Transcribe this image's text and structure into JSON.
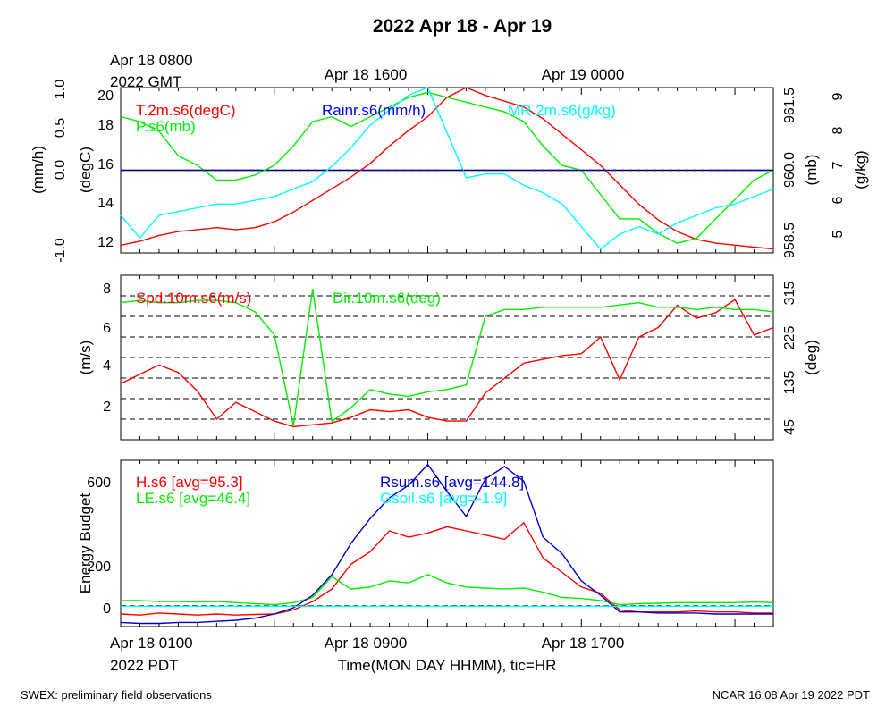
{
  "header": {
    "title": "2022 Apr 18 - Apr 19"
  },
  "gmt_axis": {
    "ticks": [
      {
        "label": "Apr 18 0800",
        "sub": "2022 GMT"
      },
      {
        "label": "Apr 18 1600",
        "sub": ""
      },
      {
        "label": "Apr 19 0000",
        "sub": ""
      }
    ]
  },
  "footer": {
    "left": "SWEX: preliminary field observations",
    "right": "NCAR 16:08 Apr 19 2022 PDT"
  },
  "chart_data": [
    {
      "type": "line",
      "panel": "top",
      "x_range_hours_pdt": [
        0,
        34
      ],
      "axes": [
        {
          "label": "(mm/h)",
          "range": [
            -1.0,
            1.0
          ],
          "ticks": [
            "-1.0",
            "0.0",
            "0.5",
            "1.0"
          ]
        },
        {
          "label": "(degC)",
          "range": [
            11.5,
            20
          ],
          "ticks": [
            "12",
            "14",
            "16",
            "18",
            "20"
          ]
        },
        {
          "label": "(mb)",
          "range": [
            958.1,
            961.5
          ],
          "ticks": [
            "958.5",
            "960.0",
            "961.5"
          ]
        },
        {
          "label": "(g/kg)",
          "range": [
            4.8,
            9.2
          ],
          "ticks": [
            "5",
            "6",
            "7",
            "8",
            "9"
          ]
        }
      ],
      "series": [
        {
          "name": "T.2m.s6(degC)",
          "color": "#ff0000",
          "axis": 1,
          "x": [
            0,
            1,
            2,
            3,
            4,
            5,
            6,
            7,
            8,
            9,
            10,
            11,
            12,
            13,
            14,
            15,
            16,
            17,
            18,
            19,
            20,
            21,
            22,
            23,
            24,
            25,
            26,
            27,
            28,
            29,
            30,
            31,
            32,
            33,
            34
          ],
          "y": [
            11.9,
            12.1,
            12.4,
            12.6,
            12.7,
            12.8,
            12.7,
            12.8,
            13.1,
            13.6,
            14.2,
            14.8,
            15.4,
            16.1,
            17.0,
            17.8,
            18.5,
            19.5,
            20.0,
            19.6,
            19.3,
            19.0,
            18.4,
            17.6,
            16.8,
            16.0,
            15.0,
            14.0,
            13.2,
            12.6,
            12.2,
            12.0,
            11.9,
            11.8,
            11.7
          ]
        },
        {
          "name": "P.s6(mb)",
          "color": "#00ee00",
          "axis": 2,
          "x": [
            0,
            1,
            2,
            3,
            4,
            5,
            6,
            7,
            8,
            9,
            10,
            11,
            12,
            13,
            14,
            15,
            16,
            17,
            18,
            19,
            20,
            21,
            22,
            23,
            24,
            25,
            26,
            27,
            28,
            29,
            30,
            31,
            32,
            33,
            34
          ],
          "y": [
            960.9,
            960.8,
            960.6,
            960.1,
            959.9,
            959.6,
            959.6,
            959.7,
            959.9,
            960.3,
            960.8,
            960.9,
            960.7,
            960.9,
            961.1,
            961.3,
            961.4,
            961.3,
            961.2,
            961.1,
            961.0,
            960.8,
            960.3,
            959.9,
            959.8,
            959.3,
            958.8,
            958.8,
            958.5,
            958.3,
            958.4,
            958.8,
            959.2,
            959.6,
            959.8
          ]
        },
        {
          "name": "MR.2m.s6(g/kg)",
          "color": "#00ffff",
          "axis": 3,
          "x": [
            0,
            1,
            2,
            3,
            4,
            5,
            6,
            7,
            8,
            9,
            10,
            11,
            12,
            13,
            14,
            15,
            16,
            17,
            18,
            19,
            20,
            21,
            22,
            23,
            24,
            25,
            26,
            27,
            28,
            29,
            30,
            31,
            32,
            33,
            34
          ],
          "y": [
            5.8,
            5.2,
            5.8,
            5.9,
            6.0,
            6.1,
            6.1,
            6.2,
            6.3,
            6.5,
            6.7,
            7.1,
            7.6,
            8.2,
            8.6,
            9.0,
            9.2,
            8.0,
            6.8,
            6.9,
            6.9,
            6.6,
            6.4,
            6.1,
            5.5,
            4.9,
            5.3,
            5.5,
            5.3,
            5.6,
            5.8,
            6.0,
            6.1,
            6.3,
            6.5
          ]
        },
        {
          "name": "Rainr.s6(mm/h)",
          "color": "#0000ff",
          "axis": 0,
          "x": [
            0,
            34
          ],
          "y": [
            0,
            0
          ]
        }
      ]
    },
    {
      "type": "line",
      "panel": "middle",
      "x_range_hours_pdt": [
        0,
        34
      ],
      "axes": [
        {
          "label": "(m/s)",
          "range": [
            0,
            8.8
          ],
          "ticks": [
            "2",
            "4",
            "6",
            "8"
          ]
        },
        {
          "label": "(deg)",
          "range": [
            0,
            360
          ],
          "ticks": [
            "45",
            "135",
            "225",
            "315"
          ]
        }
      ],
      "series": [
        {
          "name": "Spd.10m.s6(m/s)",
          "color": "#ff0000",
          "axis": 0,
          "x": [
            0,
            1,
            2,
            3,
            4,
            5,
            6,
            7,
            8,
            9,
            10,
            11,
            12,
            13,
            14,
            15,
            16,
            17,
            18,
            19,
            20,
            21,
            22,
            23,
            24,
            25,
            26,
            27,
            28,
            29,
            30,
            31,
            32,
            33,
            34
          ],
          "y": [
            3.0,
            3.5,
            4.0,
            3.6,
            2.6,
            1.1,
            2.0,
            1.5,
            1.0,
            0.7,
            0.8,
            0.9,
            1.2,
            1.6,
            1.5,
            1.6,
            1.2,
            1.0,
            1.0,
            2.5,
            3.3,
            4.1,
            4.3,
            4.5,
            4.6,
            5.5,
            3.2,
            5.5,
            6.0,
            7.2,
            6.5,
            6.8,
            7.5,
            5.6,
            6.0
          ]
        },
        {
          "name": "Dir.10m.s6(deg)",
          "color": "#00ee00",
          "axis": 1,
          "x": [
            0,
            1,
            2,
            3,
            4,
            5,
            6,
            7,
            8,
            9,
            10,
            11,
            12,
            13,
            14,
            15,
            16,
            17,
            18,
            19,
            20,
            21,
            22,
            23,
            24,
            25,
            26,
            27,
            28,
            29,
            30,
            31,
            32,
            33,
            34
          ],
          "y": [
            300,
            305,
            300,
            300,
            305,
            305,
            300,
            280,
            230,
            30,
            330,
            40,
            70,
            110,
            100,
            95,
            105,
            110,
            120,
            270,
            285,
            285,
            290,
            290,
            290,
            290,
            295,
            300,
            290,
            290,
            285,
            290,
            285,
            285,
            280
          ]
        }
      ]
    },
    {
      "type": "line",
      "panel": "bottom",
      "x_range_hours_pdt": [
        0,
        34
      ],
      "axes": [
        {
          "label": "Energy Budget",
          "range": [
            -100,
            700
          ],
          "ticks": [
            "0",
            "200",
            "600"
          ]
        }
      ],
      "series": [
        {
          "name": "H.s6 [avg=95.3]",
          "color": "#ff0000",
          "x": [
            0,
            1,
            2,
            3,
            4,
            5,
            6,
            7,
            8,
            9,
            10,
            11,
            12,
            13,
            14,
            15,
            16,
            17,
            18,
            19,
            20,
            21,
            22,
            23,
            24,
            25,
            26,
            27,
            28,
            29,
            30,
            31,
            32,
            33,
            34
          ],
          "y": [
            -40,
            -45,
            -35,
            -40,
            -45,
            -40,
            -45,
            -42,
            -40,
            -20,
            20,
            80,
            200,
            260,
            360,
            330,
            350,
            380,
            360,
            340,
            320,
            400,
            230,
            160,
            90,
            60,
            -20,
            -30,
            -30,
            -30,
            -25,
            -30,
            -30,
            -35,
            -35
          ]
        },
        {
          "name": "LE.s6 [avg=46.4]",
          "color": "#00ee00",
          "x": [
            0,
            1,
            2,
            3,
            4,
            5,
            6,
            7,
            8,
            9,
            10,
            11,
            12,
            13,
            14,
            15,
            16,
            17,
            18,
            19,
            20,
            21,
            22,
            23,
            24,
            25,
            26,
            27,
            28,
            29,
            30,
            31,
            32,
            33,
            34
          ],
          "y": [
            25,
            25,
            20,
            20,
            18,
            20,
            15,
            10,
            5,
            15,
            40,
            140,
            80,
            90,
            120,
            110,
            150,
            110,
            90,
            85,
            80,
            85,
            65,
            40,
            35,
            25,
            5,
            10,
            12,
            15,
            15,
            15,
            15,
            18,
            15
          ]
        },
        {
          "name": "Rsum.s6 [avg=144.8]",
          "color": "#0000cc",
          "x": [
            0,
            1,
            2,
            3,
            4,
            5,
            6,
            7,
            8,
            9,
            10,
            11,
            12,
            13,
            14,
            15,
            16,
            17,
            18,
            19,
            20,
            21,
            22,
            23,
            24,
            25,
            26,
            27,
            28,
            29,
            30,
            31,
            32,
            33,
            34
          ],
          "y": [
            -80,
            -85,
            -85,
            -80,
            -80,
            -75,
            -70,
            -60,
            -40,
            -10,
            50,
            150,
            300,
            420,
            520,
            580,
            680,
            550,
            430,
            610,
            670,
            600,
            330,
            250,
            120,
            50,
            -30,
            -30,
            -35,
            -35,
            -35,
            -40,
            -40,
            -40,
            -40
          ]
        },
        {
          "name": "Gsoil.s6 [avg=-1.9]",
          "color": "#00ffff",
          "x": [
            0,
            34
          ],
          "y": [
            -3,
            -3
          ]
        }
      ]
    }
  ],
  "pdt_axis": {
    "ticks": [
      {
        "label": "Apr 18 0100",
        "sub": "2022 PDT"
      },
      {
        "label": "Apr 18 0900",
        "sub": ""
      },
      {
        "label": "Apr 18 1700",
        "sub": ""
      }
    ],
    "xlabel": "Time(MON DAY HHMM), tic=HR"
  }
}
